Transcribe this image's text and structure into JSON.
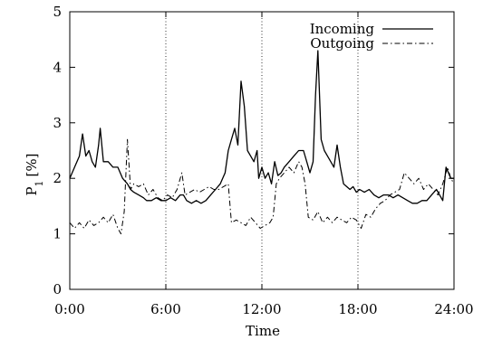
{
  "chart_data": {
    "type": "line",
    "xlabel": "Time",
    "ylabel_main": "P",
    "ylabel_sub": "1",
    "ylabel_unit": "[%]",
    "xlim": [
      0,
      24
    ],
    "ylim": [
      0,
      5
    ],
    "x_ticks": [
      {
        "value": 0,
        "label": "0:00"
      },
      {
        "value": 6,
        "label": "6:00"
      },
      {
        "value": 12,
        "label": "12:00"
      },
      {
        "value": 18,
        "label": "18:00"
      },
      {
        "value": 24,
        "label": "24:00"
      }
    ],
    "y_ticks": [
      {
        "value": 0,
        "label": "0"
      },
      {
        "value": 1,
        "label": "1"
      },
      {
        "value": 2,
        "label": "2"
      },
      {
        "value": 3,
        "label": "3"
      },
      {
        "value": 4,
        "label": "4"
      },
      {
        "value": 5,
        "label": "5"
      }
    ],
    "vertical_gridlines": [
      6,
      12,
      18
    ],
    "legend_position": "top-right",
    "series": [
      {
        "name": "Incoming",
        "style": "solid",
        "points": [
          [
            0.0,
            2.0
          ],
          [
            0.3,
            2.2
          ],
          [
            0.6,
            2.4
          ],
          [
            0.8,
            2.8
          ],
          [
            1.0,
            2.4
          ],
          [
            1.2,
            2.5
          ],
          [
            1.4,
            2.3
          ],
          [
            1.6,
            2.2
          ],
          [
            1.8,
            2.6
          ],
          [
            1.9,
            2.9
          ],
          [
            2.1,
            2.3
          ],
          [
            2.4,
            2.3
          ],
          [
            2.7,
            2.2
          ],
          [
            3.0,
            2.2
          ],
          [
            3.3,
            2.0
          ],
          [
            3.6,
            1.9
          ],
          [
            3.8,
            1.8
          ],
          [
            4.0,
            1.75
          ],
          [
            4.3,
            1.7
          ],
          [
            4.6,
            1.65
          ],
          [
            4.8,
            1.6
          ],
          [
            5.1,
            1.6
          ],
          [
            5.4,
            1.65
          ],
          [
            5.7,
            1.6
          ],
          [
            6.0,
            1.6
          ],
          [
            6.3,
            1.65
          ],
          [
            6.6,
            1.6
          ],
          [
            6.9,
            1.7
          ],
          [
            7.1,
            1.7
          ],
          [
            7.3,
            1.6
          ],
          [
            7.6,
            1.55
          ],
          [
            7.9,
            1.6
          ],
          [
            8.2,
            1.55
          ],
          [
            8.5,
            1.6
          ],
          [
            8.8,
            1.7
          ],
          [
            9.1,
            1.8
          ],
          [
            9.4,
            1.9
          ],
          [
            9.7,
            2.1
          ],
          [
            9.9,
            2.5
          ],
          [
            10.1,
            2.7
          ],
          [
            10.3,
            2.9
          ],
          [
            10.5,
            2.6
          ],
          [
            10.7,
            3.75
          ],
          [
            10.9,
            3.3
          ],
          [
            11.1,
            2.5
          ],
          [
            11.3,
            2.4
          ],
          [
            11.5,
            2.3
          ],
          [
            11.7,
            2.5
          ],
          [
            11.8,
            2.0
          ],
          [
            12.0,
            2.2
          ],
          [
            12.2,
            2.0
          ],
          [
            12.4,
            2.1
          ],
          [
            12.6,
            1.9
          ],
          [
            12.8,
            2.3
          ],
          [
            13.0,
            2.05
          ],
          [
            13.2,
            2.1
          ],
          [
            13.4,
            2.2
          ],
          [
            13.7,
            2.3
          ],
          [
            14.0,
            2.4
          ],
          [
            14.3,
            2.5
          ],
          [
            14.6,
            2.5
          ],
          [
            14.8,
            2.3
          ],
          [
            15.0,
            2.1
          ],
          [
            15.2,
            2.3
          ],
          [
            15.35,
            3.5
          ],
          [
            15.5,
            4.3
          ],
          [
            15.7,
            2.7
          ],
          [
            15.9,
            2.5
          ],
          [
            16.1,
            2.4
          ],
          [
            16.3,
            2.3
          ],
          [
            16.5,
            2.2
          ],
          [
            16.7,
            2.6
          ],
          [
            16.9,
            2.2
          ],
          [
            17.1,
            1.9
          ],
          [
            17.3,
            1.85
          ],
          [
            17.5,
            1.8
          ],
          [
            17.7,
            1.85
          ],
          [
            17.9,
            1.75
          ],
          [
            18.1,
            1.8
          ],
          [
            18.4,
            1.75
          ],
          [
            18.7,
            1.8
          ],
          [
            19.0,
            1.7
          ],
          [
            19.3,
            1.65
          ],
          [
            19.6,
            1.7
          ],
          [
            19.9,
            1.7
          ],
          [
            20.2,
            1.65
          ],
          [
            20.5,
            1.7
          ],
          [
            20.8,
            1.65
          ],
          [
            21.1,
            1.6
          ],
          [
            21.4,
            1.55
          ],
          [
            21.7,
            1.55
          ],
          [
            22.0,
            1.6
          ],
          [
            22.3,
            1.6
          ],
          [
            22.6,
            1.7
          ],
          [
            22.9,
            1.8
          ],
          [
            23.1,
            1.7
          ],
          [
            23.3,
            1.6
          ],
          [
            23.5,
            2.2
          ],
          [
            23.8,
            2.0
          ],
          [
            24.0,
            2.0
          ]
        ]
      },
      {
        "name": "Outgoing",
        "style": "dashdot",
        "points": [
          [
            0.0,
            1.2
          ],
          [
            0.3,
            1.1
          ],
          [
            0.6,
            1.2
          ],
          [
            0.9,
            1.1
          ],
          [
            1.2,
            1.25
          ],
          [
            1.5,
            1.15
          ],
          [
            1.8,
            1.2
          ],
          [
            2.1,
            1.3
          ],
          [
            2.4,
            1.2
          ],
          [
            2.7,
            1.35
          ],
          [
            3.0,
            1.1
          ],
          [
            3.2,
            1.0
          ],
          [
            3.4,
            1.4
          ],
          [
            3.6,
            2.7
          ],
          [
            3.8,
            1.8
          ],
          [
            4.0,
            1.9
          ],
          [
            4.3,
            1.85
          ],
          [
            4.6,
            1.9
          ],
          [
            4.9,
            1.7
          ],
          [
            5.2,
            1.8
          ],
          [
            5.5,
            1.65
          ],
          [
            5.8,
            1.6
          ],
          [
            6.1,
            1.7
          ],
          [
            6.4,
            1.65
          ],
          [
            6.7,
            1.8
          ],
          [
            7.0,
            2.1
          ],
          [
            7.2,
            1.7
          ],
          [
            7.5,
            1.75
          ],
          [
            7.8,
            1.8
          ],
          [
            8.1,
            1.75
          ],
          [
            8.4,
            1.8
          ],
          [
            8.7,
            1.85
          ],
          [
            9.0,
            1.8
          ],
          [
            9.3,
            1.8
          ],
          [
            9.6,
            1.85
          ],
          [
            9.9,
            1.9
          ],
          [
            10.1,
            1.2
          ],
          [
            10.4,
            1.25
          ],
          [
            10.7,
            1.2
          ],
          [
            11.0,
            1.15
          ],
          [
            11.3,
            1.3
          ],
          [
            11.6,
            1.2
          ],
          [
            11.9,
            1.1
          ],
          [
            12.2,
            1.15
          ],
          [
            12.5,
            1.2
          ],
          [
            12.7,
            1.3
          ],
          [
            12.9,
            1.9
          ],
          [
            13.1,
            2.0
          ],
          [
            13.4,
            2.1
          ],
          [
            13.7,
            2.2
          ],
          [
            14.0,
            2.1
          ],
          [
            14.3,
            2.3
          ],
          [
            14.5,
            2.2
          ],
          [
            14.7,
            1.9
          ],
          [
            14.9,
            1.3
          ],
          [
            15.2,
            1.25
          ],
          [
            15.5,
            1.4
          ],
          [
            15.8,
            1.2
          ],
          [
            16.1,
            1.3
          ],
          [
            16.4,
            1.2
          ],
          [
            16.7,
            1.3
          ],
          [
            17.0,
            1.25
          ],
          [
            17.3,
            1.2
          ],
          [
            17.6,
            1.3
          ],
          [
            17.9,
            1.25
          ],
          [
            18.2,
            1.1
          ],
          [
            18.5,
            1.35
          ],
          [
            18.8,
            1.3
          ],
          [
            19.1,
            1.45
          ],
          [
            19.4,
            1.55
          ],
          [
            19.7,
            1.6
          ],
          [
            20.0,
            1.7
          ],
          [
            20.3,
            1.75
          ],
          [
            20.6,
            1.8
          ],
          [
            20.9,
            2.1
          ],
          [
            21.2,
            2.0
          ],
          [
            21.5,
            1.9
          ],
          [
            21.8,
            2.0
          ],
          [
            22.1,
            1.8
          ],
          [
            22.4,
            1.9
          ],
          [
            22.7,
            1.8
          ],
          [
            23.0,
            1.7
          ],
          [
            23.3,
            1.9
          ],
          [
            23.6,
            2.2
          ],
          [
            23.8,
            2.0
          ],
          [
            24.0,
            1.9
          ]
        ]
      }
    ]
  }
}
